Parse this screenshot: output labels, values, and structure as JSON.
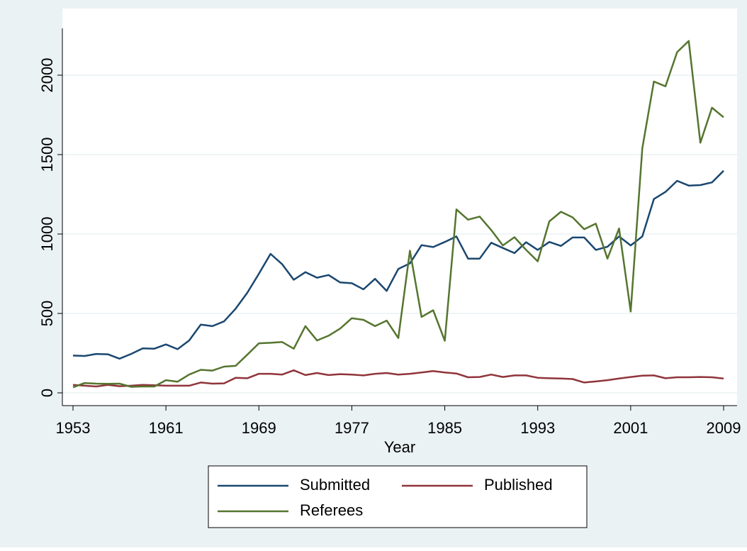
{
  "chart_data": {
    "type": "line",
    "x_label": "Year",
    "x": [
      1953,
      1954,
      1955,
      1956,
      1957,
      1958,
      1959,
      1960,
      1961,
      1962,
      1963,
      1964,
      1965,
      1966,
      1967,
      1968,
      1969,
      1970,
      1971,
      1972,
      1973,
      1974,
      1975,
      1976,
      1977,
      1978,
      1979,
      1980,
      1981,
      1982,
      1983,
      1984,
      1985,
      1986,
      1987,
      1988,
      1989,
      1990,
      1991,
      1992,
      1993,
      1994,
      1995,
      1996,
      1997,
      1998,
      1999,
      2000,
      2001,
      2002,
      2003,
      2004,
      2005,
      2006,
      2007,
      2008,
      2009
    ],
    "series": [
      {
        "name": "Submitted",
        "color": "#1a476f",
        "values": [
          235,
          232,
          245,
          243,
          215,
          245,
          280,
          278,
          305,
          275,
          330,
          430,
          420,
          450,
          530,
          630,
          750,
          875,
          810,
          712,
          760,
          725,
          742,
          695,
          690,
          652,
          718,
          642,
          780,
          815,
          930,
          918,
          950,
          985,
          845,
          845,
          945,
          912,
          880,
          948,
          900,
          950,
          925,
          978,
          978,
          900,
          920,
          985,
          928,
          985,
          1220,
          1265,
          1335,
          1305,
          1308,
          1325,
          1398
        ]
      },
      {
        "name": "Published",
        "color": "#90353b",
        "values": [
          50,
          45,
          40,
          50,
          42,
          45,
          50,
          48,
          45,
          45,
          45,
          65,
          58,
          60,
          95,
          92,
          120,
          120,
          115,
          142,
          112,
          125,
          112,
          118,
          115,
          110,
          120,
          125,
          115,
          120,
          128,
          137,
          128,
          122,
          98,
          100,
          115,
          100,
          110,
          110,
          95,
          92,
          90,
          87,
          65,
          72,
          80,
          90,
          100,
          108,
          110,
          92,
          98,
          98,
          100,
          98,
          90
        ]
      },
      {
        "name": "Referees",
        "color": "#55752f",
        "values": [
          35,
          62,
          58,
          57,
          58,
          38,
          40,
          40,
          80,
          70,
          115,
          145,
          140,
          165,
          170,
          240,
          312,
          315,
          320,
          278,
          420,
          330,
          360,
          405,
          470,
          460,
          420,
          455,
          345,
          895,
          478,
          520,
          328,
          1155,
          1090,
          1110,
          1025,
          928,
          980,
          900,
          828,
          1080,
          1140,
          1105,
          1030,
          1065,
          845,
          1035,
          512,
          1540,
          1960,
          1930,
          2145,
          2215,
          1575,
          1795,
          1735
        ]
      }
    ],
    "xlim": [
      1953,
      2009
    ],
    "xticks": [
      1953,
      1961,
      1969,
      1977,
      1985,
      1993,
      2001,
      2009
    ],
    "ylim": [
      0,
      2000
    ],
    "yticks": [
      0,
      500,
      1000,
      1500,
      2000
    ],
    "grid": true,
    "legend": "bottom"
  }
}
